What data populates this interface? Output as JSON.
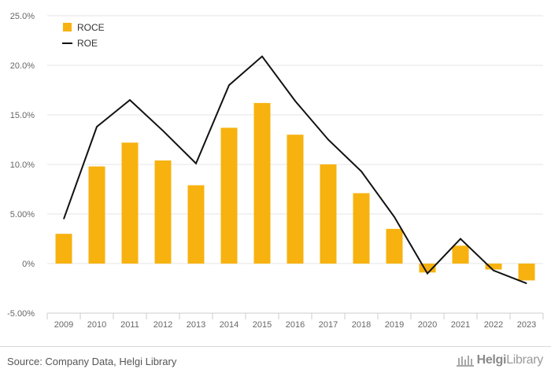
{
  "chart_data": {
    "type": "bar",
    "categories": [
      "2009",
      "2010",
      "2011",
      "2012",
      "2013",
      "2014",
      "2015",
      "2016",
      "2017",
      "2018",
      "2019",
      "2020",
      "2021",
      "2022",
      "2023"
    ],
    "series": [
      {
        "name": "ROCE",
        "type": "bar",
        "color": "#f7b20f",
        "values": [
          3.0,
          9.8,
          12.2,
          10.4,
          7.9,
          13.7,
          16.2,
          13.0,
          10.0,
          7.1,
          3.5,
          -0.9,
          1.8,
          -0.6,
          -1.7
        ]
      },
      {
        "name": "ROE",
        "type": "line",
        "color": "#111111",
        "values": [
          4.5,
          13.8,
          16.5,
          13.4,
          10.1,
          18.0,
          20.9,
          16.4,
          12.5,
          9.3,
          4.7,
          -1.0,
          2.5,
          -0.7,
          -2.0
        ]
      }
    ],
    "y_ticks": [
      "-5.00%",
      "0%",
      "5.00%",
      "10.0%",
      "15.0%",
      "20.0%",
      "25.0%"
    ],
    "y_tick_values": [
      -5,
      0,
      5,
      10,
      15,
      20,
      25
    ],
    "ylim": [
      -5,
      25
    ],
    "grid": true,
    "legend_position": "top-left"
  },
  "footer": {
    "source": "Source: Company Data, Helgi Library",
    "logo_part1": "Helgi",
    "logo_part2": "Library"
  }
}
